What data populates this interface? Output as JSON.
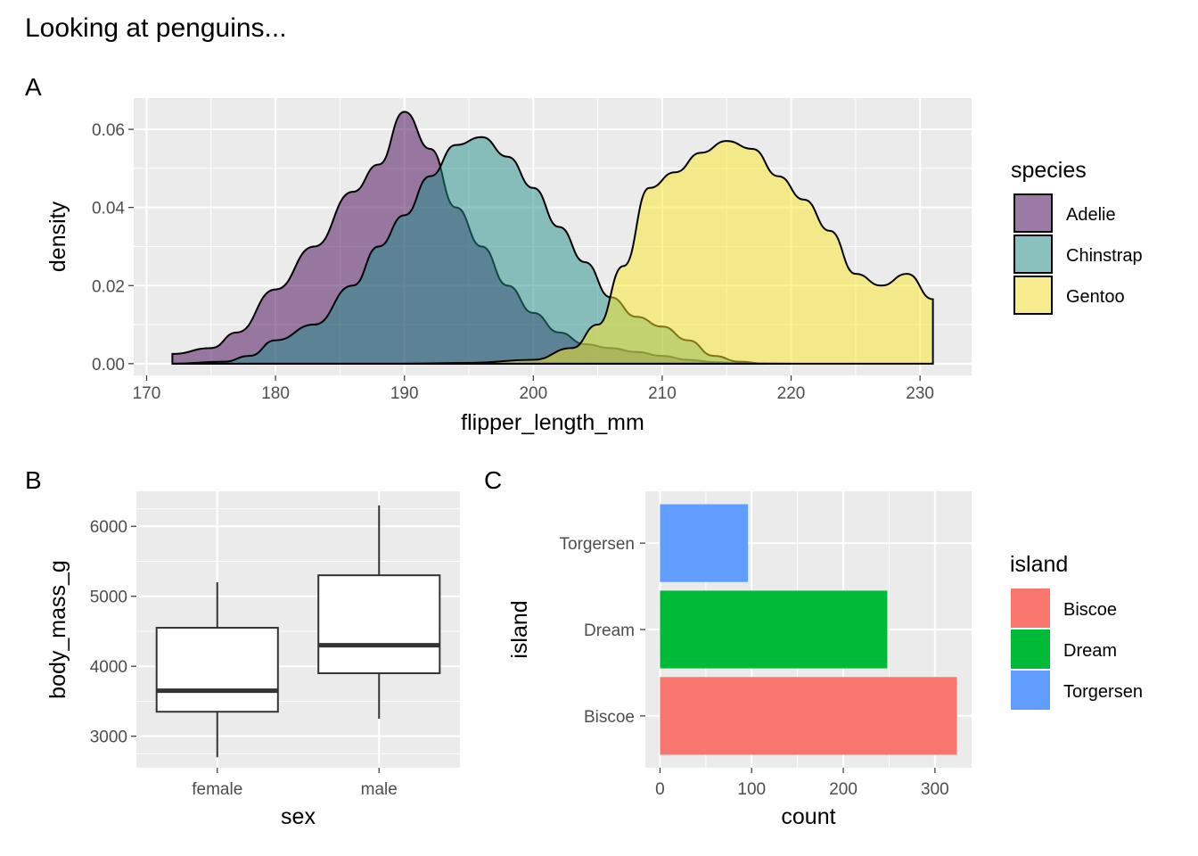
{
  "title": "Looking at penguins...",
  "colors": {
    "Adelie": "#440154",
    "Chinstrap": "#21908c",
    "Gentoo": "#fde725",
    "Biscoe": "#f8766d",
    "Dream": "#00ba38",
    "Torgersen": "#619cff"
  },
  "chart_data": [
    {
      "tag": "A",
      "type": "area",
      "xlabel": "flipper_length_mm",
      "ylabel": "density",
      "xlim": [
        169,
        234
      ],
      "ylim": [
        -0.003,
        0.068
      ],
      "xticks": [
        170,
        180,
        190,
        200,
        210,
        220,
        230
      ],
      "yticks": [
        0,
        0.02,
        0.04,
        0.06
      ],
      "ytick_labels": [
        "0.00",
        "0.02",
        "0.04",
        "0.06"
      ],
      "legend": {
        "title": "species",
        "position": "right",
        "entries": [
          "Adelie",
          "Chinstrap",
          "Gentoo"
        ]
      },
      "series": [
        {
          "name": "Adelie",
          "x": [
            172,
            175,
            177,
            180,
            183,
            186,
            188,
            190,
            192,
            194,
            196,
            198,
            200,
            202,
            204,
            206,
            208,
            210,
            212,
            214,
            216,
            220
          ],
          "y": [
            0.0025,
            0.004,
            0.008,
            0.019,
            0.03,
            0.044,
            0.051,
            0.0645,
            0.055,
            0.04,
            0.03,
            0.02,
            0.013,
            0.008,
            0.005,
            0.004,
            0.003,
            0.002,
            0.001,
            0.0004,
            0.0001,
            0
          ]
        },
        {
          "name": "Chinstrap",
          "x": [
            172,
            176,
            178,
            180,
            183,
            186,
            188,
            190,
            192,
            194,
            196,
            198,
            200,
            202,
            204,
            206,
            208,
            210,
            212,
            214,
            216,
            218
          ],
          "y": [
            0,
            0.0005,
            0.002,
            0.006,
            0.01,
            0.02,
            0.03,
            0.038,
            0.048,
            0.056,
            0.058,
            0.053,
            0.045,
            0.035,
            0.026,
            0.017,
            0.012,
            0.0095,
            0.006,
            0.002,
            0.0005,
            0
          ]
        },
        {
          "name": "Gentoo",
          "x": [
            190,
            195,
            200,
            203,
            205,
            207,
            209,
            211,
            213,
            215,
            217,
            219,
            221,
            223,
            225,
            227,
            229,
            231
          ],
          "y": [
            0,
            0.0002,
            0.001,
            0.004,
            0.01,
            0.025,
            0.045,
            0.049,
            0.054,
            0.057,
            0.055,
            0.048,
            0.042,
            0.034,
            0.023,
            0.02,
            0.023,
            0.0165
          ]
        }
      ]
    },
    {
      "tag": "B",
      "type": "box",
      "xlabel": "sex",
      "ylabel": "body_mass_g",
      "categories": [
        "female",
        "male"
      ],
      "ylim": [
        2550,
        6500
      ],
      "yticks": [
        3000,
        4000,
        5000,
        6000
      ],
      "boxes": [
        {
          "category": "female",
          "min": 2700,
          "q1": 3350,
          "median": 3650,
          "q3": 4550,
          "max": 5200
        },
        {
          "category": "male",
          "min": 3250,
          "q1": 3900,
          "median": 4300,
          "q3": 5300,
          "max": 6300
        }
      ]
    },
    {
      "tag": "C",
      "type": "bar",
      "orientation": "horizontal",
      "xlabel": "count",
      "ylabel": "island",
      "categories": [
        "Biscoe",
        "Dream",
        "Torgersen"
      ],
      "values": [
        324,
        248,
        96
      ],
      "xlim": [
        -16,
        340
      ],
      "xticks": [
        0,
        100,
        200,
        300
      ],
      "legend": {
        "title": "island",
        "position": "right",
        "entries": [
          "Biscoe",
          "Dream",
          "Torgersen"
        ]
      }
    }
  ]
}
